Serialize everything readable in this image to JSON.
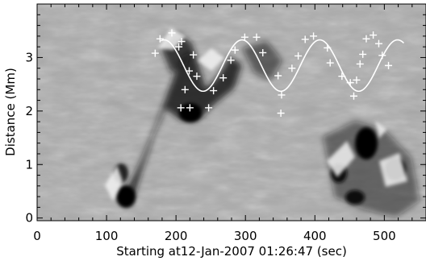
{
  "chart_data": {
    "type": "scatter",
    "xlabel": "Starting at12-Jan-2007 01:26:47 (sec)",
    "ylabel": "Distance (Mm)",
    "xlim": [
      0,
      560
    ],
    "ylim": [
      -0.05,
      4.0
    ],
    "xticks": [
      0,
      100,
      200,
      300,
      400,
      500
    ],
    "yticks": [
      0,
      1,
      2,
      3
    ],
    "grid": false,
    "legend": "none",
    "background": "grayscale time-distance image",
    "colors": {
      "marker": "#ffffff",
      "fit_line": "#ffffff",
      "frame": "#000000"
    },
    "marker_symbol": "plus",
    "series": [
      {
        "type": "scatter",
        "points": [
          [
            170,
            3.08
          ],
          [
            177,
            3.35
          ],
          [
            194,
            3.46
          ],
          [
            204,
            3.2
          ],
          [
            208,
            3.3
          ],
          [
            213,
            2.4
          ],
          [
            219,
            2.75
          ],
          [
            225,
            3.05
          ],
          [
            207,
            2.06
          ],
          [
            220,
            2.06
          ],
          [
            230,
            2.65
          ],
          [
            247,
            2.06
          ],
          [
            254,
            2.38
          ],
          [
            268,
            2.62
          ],
          [
            279,
            2.95
          ],
          [
            285,
            3.14
          ],
          [
            299,
            3.38
          ],
          [
            316,
            3.38
          ],
          [
            325,
            3.09
          ],
          [
            347,
            2.66
          ],
          [
            352,
            2.3
          ],
          [
            351,
            1.96
          ],
          [
            367,
            2.8
          ],
          [
            376,
            3.03
          ],
          [
            386,
            3.34
          ],
          [
            398,
            3.4
          ],
          [
            418,
            3.18
          ],
          [
            422,
            2.9
          ],
          [
            439,
            2.65
          ],
          [
            451,
            2.53
          ],
          [
            456,
            2.28
          ],
          [
            460,
            2.58
          ],
          [
            465,
            2.88
          ],
          [
            469,
            3.06
          ],
          [
            474,
            3.35
          ],
          [
            484,
            3.42
          ],
          [
            492,
            3.26
          ],
          [
            497,
            3.04
          ],
          [
            506,
            2.85
          ]
        ]
      },
      {
        "type": "line",
        "fit": {
          "offset": 2.85,
          "amplitude": 0.48,
          "period": 112,
          "peak_at": 183,
          "x_range": [
            178,
            528
          ]
        }
      }
    ]
  }
}
